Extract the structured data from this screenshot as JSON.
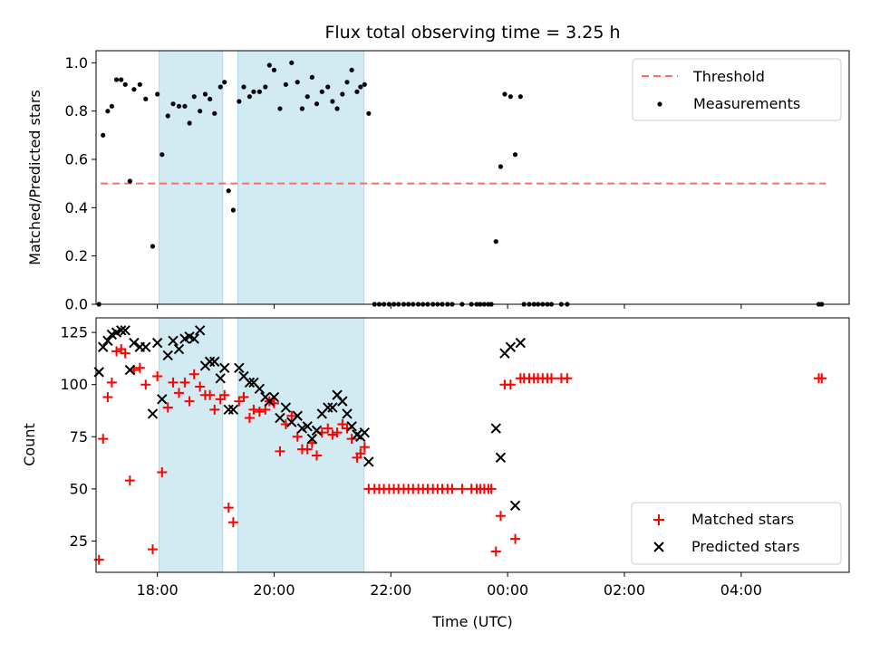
{
  "figure": {
    "title": "Flux total observing time = 3.25 h",
    "xlabel": "Time (UTC)"
  },
  "colors": {
    "threshold": "#ff6b6b",
    "measurements": "#000000",
    "shaded": "#add8e6",
    "matched": "#ff0000",
    "predicted": "#000000"
  },
  "chart_data": [
    {
      "type": "scatter",
      "panel": "top",
      "ylabel": "Matched/Predicted stars",
      "xlim": [
        16.95,
        29.85
      ],
      "ylim": [
        0.0,
        1.05
      ],
      "x_unit": "hours UTC (values above 24 are after midnight)",
      "yticks": [
        "0.0",
        "0.2",
        "0.4",
        "0.6",
        "0.8",
        "1.0"
      ],
      "xticks": [
        "18:00",
        "20:00",
        "22:00",
        "00:00",
        "02:00",
        "04:00"
      ],
      "legend_position": "top-right",
      "shaded_intervals": [
        [
          18.03,
          19.12
        ],
        [
          19.38,
          21.54
        ]
      ],
      "threshold": {
        "name": "Threshold",
        "y": 0.5,
        "x_range": [
          17.03,
          29.45
        ]
      },
      "series": [
        {
          "name": "Measurements",
          "points": [
            [
              17.0,
              0.0
            ],
            [
              17.07,
              0.7
            ],
            [
              17.15,
              0.8
            ],
            [
              17.22,
              0.82
            ],
            [
              17.3,
              0.93
            ],
            [
              17.38,
              0.93
            ],
            [
              17.45,
              0.91
            ],
            [
              17.53,
              0.51
            ],
            [
              17.6,
              0.89
            ],
            [
              17.7,
              0.91
            ],
            [
              17.8,
              0.85
            ],
            [
              17.92,
              0.24
            ],
            [
              18.0,
              0.87
            ],
            [
              18.08,
              0.62
            ],
            [
              18.18,
              0.78
            ],
            [
              18.27,
              0.83
            ],
            [
              18.37,
              0.82
            ],
            [
              18.47,
              0.82
            ],
            [
              18.55,
              0.75
            ],
            [
              18.63,
              0.86
            ],
            [
              18.73,
              0.8
            ],
            [
              18.82,
              0.87
            ],
            [
              18.9,
              0.85
            ],
            [
              18.98,
              0.79
            ],
            [
              19.08,
              0.9
            ],
            [
              19.15,
              0.92
            ],
            [
              19.22,
              0.47
            ],
            [
              19.3,
              0.39
            ],
            [
              19.4,
              0.84
            ],
            [
              19.48,
              0.9
            ],
            [
              19.58,
              0.86
            ],
            [
              19.65,
              0.88
            ],
            [
              19.75,
              0.88
            ],
            [
              19.85,
              0.9
            ],
            [
              19.92,
              0.99
            ],
            [
              20.0,
              0.97
            ],
            [
              20.1,
              0.81
            ],
            [
              20.2,
              0.91
            ],
            [
              20.3,
              1.0
            ],
            [
              20.4,
              0.92
            ],
            [
              20.48,
              0.81
            ],
            [
              20.57,
              0.86
            ],
            [
              20.65,
              0.94
            ],
            [
              20.73,
              0.83
            ],
            [
              20.82,
              0.88
            ],
            [
              20.92,
              0.9
            ],
            [
              21.0,
              0.84
            ],
            [
              21.08,
              0.81
            ],
            [
              21.17,
              0.87
            ],
            [
              21.25,
              0.92
            ],
            [
              21.33,
              0.97
            ],
            [
              21.42,
              0.88
            ],
            [
              21.48,
              0.9
            ],
            [
              21.55,
              0.91
            ],
            [
              21.62,
              0.79
            ],
            [
              21.72,
              0.0
            ],
            [
              21.8,
              0.0
            ],
            [
              21.88,
              0.0
            ],
            [
              21.97,
              0.0
            ],
            [
              22.05,
              0.0
            ],
            [
              22.13,
              0.0
            ],
            [
              22.22,
              0.0
            ],
            [
              22.3,
              0.0
            ],
            [
              22.38,
              0.0
            ],
            [
              22.47,
              0.0
            ],
            [
              22.55,
              0.0
            ],
            [
              22.63,
              0.0
            ],
            [
              22.72,
              0.0
            ],
            [
              22.8,
              0.0
            ],
            [
              22.88,
              0.0
            ],
            [
              22.97,
              0.0
            ],
            [
              23.05,
              0.0
            ],
            [
              23.22,
              0.0
            ],
            [
              23.38,
              0.0
            ],
            [
              23.47,
              0.0
            ],
            [
              23.53,
              0.0
            ],
            [
              23.6,
              0.0
            ],
            [
              23.67,
              0.0
            ],
            [
              23.72,
              0.0
            ],
            [
              23.8,
              0.26
            ],
            [
              23.88,
              0.57
            ],
            [
              23.95,
              0.87
            ],
            [
              24.05,
              0.86
            ],
            [
              24.13,
              0.62
            ],
            [
              24.22,
              0.86
            ],
            [
              24.28,
              0.0
            ],
            [
              24.37,
              0.0
            ],
            [
              24.45,
              0.0
            ],
            [
              24.52,
              0.0
            ],
            [
              24.6,
              0.0
            ],
            [
              24.68,
              0.0
            ],
            [
              24.75,
              0.0
            ],
            [
              24.92,
              0.0
            ],
            [
              25.02,
              0.0
            ],
            [
              29.33,
              0.0
            ],
            [
              29.38,
              0.0
            ]
          ]
        }
      ]
    },
    {
      "type": "scatter",
      "panel": "bottom",
      "ylabel": "Count",
      "xlim": [
        16.95,
        29.85
      ],
      "ylim": [
        10,
        132
      ],
      "x_unit": "hours UTC (values above 24 are after midnight)",
      "yticks": [
        "25",
        "50",
        "75",
        "100",
        "125"
      ],
      "xticks": [
        "18:00",
        "20:00",
        "22:00",
        "00:00",
        "02:00",
        "04:00"
      ],
      "legend_position": "bottom-right",
      "shaded_intervals": [
        [
          18.03,
          19.12
        ],
        [
          19.38,
          21.54
        ]
      ],
      "series": [
        {
          "name": "Matched stars",
          "marker": "plus",
          "points": [
            [
              17.0,
              16
            ],
            [
              17.07,
              74
            ],
            [
              17.15,
              94
            ],
            [
              17.22,
              101
            ],
            [
              17.3,
              116
            ],
            [
              17.38,
              117
            ],
            [
              17.45,
              115
            ],
            [
              17.53,
              54
            ],
            [
              17.6,
              107
            ],
            [
              17.7,
              108
            ],
            [
              17.8,
              100
            ],
            [
              17.92,
              21
            ],
            [
              18.0,
              104
            ],
            [
              18.08,
              58
            ],
            [
              18.18,
              89
            ],
            [
              18.27,
              101
            ],
            [
              18.37,
              96
            ],
            [
              18.47,
              101
            ],
            [
              18.55,
              92
            ],
            [
              18.63,
              105
            ],
            [
              18.73,
              99
            ],
            [
              18.82,
              95
            ],
            [
              18.9,
              95
            ],
            [
              18.98,
              88
            ],
            [
              19.08,
              93
            ],
            [
              19.15,
              95
            ],
            [
              19.22,
              41
            ],
            [
              19.3,
              34
            ],
            [
              19.4,
              92
            ],
            [
              19.48,
              94
            ],
            [
              19.58,
              84
            ],
            [
              19.65,
              88
            ],
            [
              19.75,
              87
            ],
            [
              19.85,
              88
            ],
            [
              19.92,
              92
            ],
            [
              20.0,
              91
            ],
            [
              20.1,
              68
            ],
            [
              20.2,
              81
            ],
            [
              20.3,
              85
            ],
            [
              20.4,
              75
            ],
            [
              20.48,
              69
            ],
            [
              20.57,
              69
            ],
            [
              20.65,
              72
            ],
            [
              20.73,
              66
            ],
            [
              20.82,
              77
            ],
            [
              20.92,
              79
            ],
            [
              21.0,
              76
            ],
            [
              21.08,
              77
            ],
            [
              21.17,
              81
            ],
            [
              21.25,
              79
            ],
            [
              21.33,
              74
            ],
            [
              21.42,
              65
            ],
            [
              21.48,
              67
            ],
            [
              21.55,
              70
            ],
            [
              21.62,
              50
            ],
            [
              21.72,
              50
            ],
            [
              21.8,
              50
            ],
            [
              21.88,
              50
            ],
            [
              21.97,
              50
            ],
            [
              22.05,
              50
            ],
            [
              22.13,
              50
            ],
            [
              22.22,
              50
            ],
            [
              22.3,
              50
            ],
            [
              22.38,
              50
            ],
            [
              22.47,
              50
            ],
            [
              22.55,
              50
            ],
            [
              22.63,
              50
            ],
            [
              22.72,
              50
            ],
            [
              22.8,
              50
            ],
            [
              22.88,
              50
            ],
            [
              22.97,
              50
            ],
            [
              23.05,
              50
            ],
            [
              23.22,
              50
            ],
            [
              23.38,
              50
            ],
            [
              23.47,
              50
            ],
            [
              23.53,
              50
            ],
            [
              23.6,
              50
            ],
            [
              23.67,
              50
            ],
            [
              23.72,
              50
            ],
            [
              23.8,
              20
            ],
            [
              23.88,
              37
            ],
            [
              23.95,
              100
            ],
            [
              24.05,
              100
            ],
            [
              24.13,
              26
            ],
            [
              24.22,
              103
            ],
            [
              24.28,
              103
            ],
            [
              24.37,
              103
            ],
            [
              24.45,
              103
            ],
            [
              24.52,
              103
            ],
            [
              24.6,
              103
            ],
            [
              24.68,
              103
            ],
            [
              24.75,
              103
            ],
            [
              24.92,
              103
            ],
            [
              25.02,
              103
            ],
            [
              29.33,
              103
            ],
            [
              29.38,
              103
            ]
          ]
        },
        {
          "name": "Predicted stars",
          "marker": "x",
          "points": [
            [
              17.0,
              106
            ],
            [
              17.07,
              118
            ],
            [
              17.15,
              121
            ],
            [
              17.22,
              124
            ],
            [
              17.3,
              125
            ],
            [
              17.38,
              126
            ],
            [
              17.45,
              126
            ],
            [
              17.53,
              107
            ],
            [
              17.6,
              120
            ],
            [
              17.7,
              118
            ],
            [
              17.8,
              118
            ],
            [
              17.92,
              86
            ],
            [
              18.0,
              120
            ],
            [
              18.08,
              93
            ],
            [
              18.18,
              114
            ],
            [
              18.27,
              121
            ],
            [
              18.37,
              117
            ],
            [
              18.47,
              122
            ],
            [
              18.55,
              123
            ],
            [
              18.63,
              122
            ],
            [
              18.73,
              126
            ],
            [
              18.82,
              109
            ],
            [
              18.9,
              111
            ],
            [
              18.98,
              111
            ],
            [
              19.08,
              103
            ],
            [
              19.15,
              108
            ],
            [
              19.22,
              88
            ],
            [
              19.3,
              88
            ],
            [
              19.4,
              108
            ],
            [
              19.48,
              104
            ],
            [
              19.58,
              101
            ],
            [
              19.65,
              101
            ],
            [
              19.75,
              98
            ],
            [
              19.85,
              94
            ],
            [
              19.92,
              92
            ],
            [
              20.0,
              94
            ],
            [
              20.1,
              84
            ],
            [
              20.2,
              89
            ],
            [
              20.3,
              82
            ],
            [
              20.4,
              85
            ],
            [
              20.48,
              79
            ],
            [
              20.57,
              80
            ],
            [
              20.65,
              74
            ],
            [
              20.73,
              78
            ],
            [
              20.82,
              86
            ],
            [
              20.92,
              89
            ],
            [
              21.0,
              89
            ],
            [
              21.08,
              95
            ],
            [
              21.17,
              92
            ],
            [
              21.25,
              86
            ],
            [
              21.33,
              80
            ],
            [
              21.42,
              76
            ],
            [
              21.48,
              75
            ],
            [
              21.55,
              77
            ],
            [
              21.62,
              63
            ],
            [
              23.8,
              79
            ],
            [
              23.88,
              65
            ],
            [
              23.95,
              115
            ],
            [
              24.05,
              118
            ],
            [
              24.13,
              42
            ],
            [
              24.22,
              120
            ]
          ]
        }
      ]
    }
  ]
}
